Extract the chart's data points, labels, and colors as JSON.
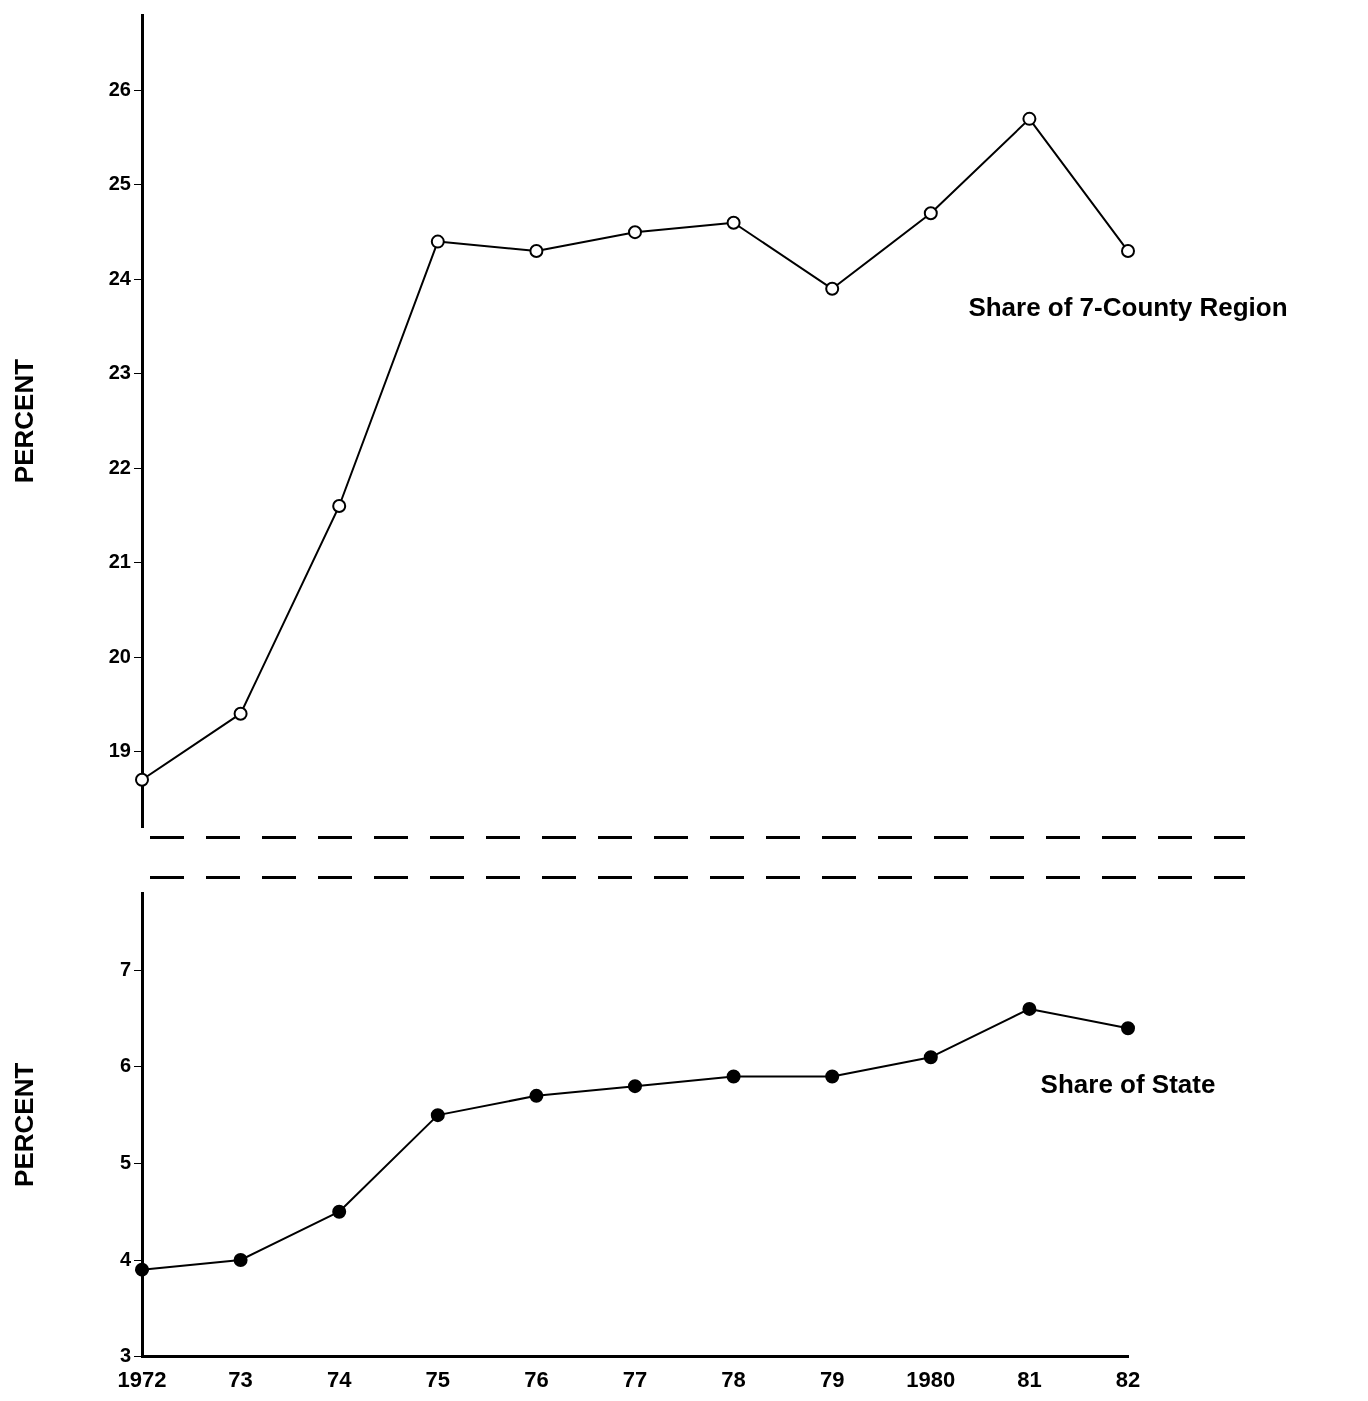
{
  "chart_data": [
    {
      "type": "line",
      "ylabel": "PERCENT",
      "categories": [
        "1972",
        "73",
        "74",
        "75",
        "76",
        "77",
        "78",
        "79",
        "1980",
        "81",
        "82"
      ],
      "tick_labels": "y",
      "marker": "circle",
      "ylim": [
        18.2,
        26.8
      ],
      "yticks": [
        19,
        20,
        21,
        22,
        23,
        24,
        25,
        26
      ],
      "series": [
        {
          "name": "Share of 7-County Region",
          "color": "#000000",
          "values": [
            18.7,
            19.4,
            21.6,
            24.4,
            24.3,
            24.5,
            24.6,
            23.9,
            24.7,
            25.7,
            24.3
          ]
        }
      ]
    },
    {
      "type": "line",
      "ylabel": "PERCENT",
      "categories": [
        "1972",
        "73",
        "74",
        "75",
        "76",
        "77",
        "78",
        "79",
        "1980",
        "81",
        "82"
      ],
      "marker": "circle",
      "ylim": [
        3,
        7.8
      ],
      "yticks": [
        3,
        4,
        5,
        6,
        7
      ],
      "series": [
        {
          "name": "Share of State",
          "color": "#000000",
          "values": [
            3.9,
            4.0,
            4.5,
            5.5,
            5.7,
            5.8,
            5.9,
            5.9,
            6.1,
            6.6,
            6.4
          ]
        }
      ]
    }
  ]
}
